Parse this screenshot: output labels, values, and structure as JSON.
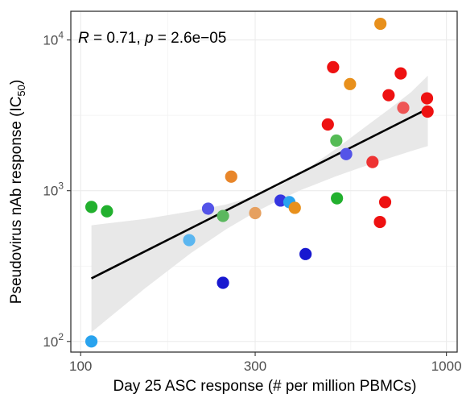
{
  "chart_data": {
    "type": "scatter",
    "x_scale": "log",
    "y_scale": "log",
    "xlim": [
      94,
      1070
    ],
    "ylim": [
      85,
      15500
    ],
    "xlabel": "Day 25 ASC response (# per million PBMCs)",
    "ylabel": "Pseudovirus nAb response (IC",
    "ylabel_sub": "50",
    "ylabel_tail": ")",
    "x_ticks": [
      {
        "value": 100,
        "label": "100"
      },
      {
        "value": 300,
        "label": "300"
      },
      {
        "value": 1000,
        "label": "1000"
      }
    ],
    "y_ticks": [
      {
        "value": 100,
        "base": "10",
        "exp": "2"
      },
      {
        "value": 1000,
        "base": "10",
        "exp": "3"
      },
      {
        "value": 10000,
        "base": "10",
        "exp": "4"
      }
    ],
    "grid": true,
    "annotation": {
      "r_label": "R",
      "r_value": " = 0.71, ",
      "p_label": "p",
      "p_value": " = 2.6e−05"
    },
    "regression": {
      "x": [
        107,
        890
      ],
      "y": [
        262,
        3500
      ]
    },
    "confidence_band": [
      {
        "x": 107,
        "lo": 115,
        "hi": 590
      },
      {
        "x": 150,
        "lo": 225,
        "hi": 650
      },
      {
        "x": 200,
        "lo": 385,
        "hi": 730
      },
      {
        "x": 250,
        "lo": 555,
        "hi": 810
      },
      {
        "x": 300,
        "lo": 720,
        "hi": 920
      },
      {
        "x": 350,
        "lo": 870,
        "hi": 1080
      },
      {
        "x": 400,
        "lo": 1010,
        "hi": 1310
      },
      {
        "x": 500,
        "lo": 1250,
        "hi": 1900
      },
      {
        "x": 600,
        "lo": 1460,
        "hi": 2650
      },
      {
        "x": 700,
        "lo": 1650,
        "hi": 3500
      },
      {
        "x": 800,
        "lo": 1830,
        "hi": 4500
      },
      {
        "x": 890,
        "lo": 1980,
        "hi": 5800
      }
    ],
    "band_color": "#e5e5e5",
    "line_color": "#000000",
    "points": [
      {
        "x": 107,
        "y": 780,
        "color": "#22b02e"
      },
      {
        "x": 118,
        "y": 730,
        "color": "#22b02e"
      },
      {
        "x": 107,
        "y": 100,
        "color": "#29a3ee"
      },
      {
        "x": 198,
        "y": 470,
        "color": "#5bb6f0"
      },
      {
        "x": 223,
        "y": 760,
        "color": "#5454e8"
      },
      {
        "x": 245,
        "y": 680,
        "color": "#5bb85f"
      },
      {
        "x": 258,
        "y": 1240,
        "color": "#e8862a"
      },
      {
        "x": 300,
        "y": 710,
        "color": "#e6a060"
      },
      {
        "x": 245,
        "y": 245,
        "color": "#1818d0"
      },
      {
        "x": 352,
        "y": 860,
        "color": "#3535e0"
      },
      {
        "x": 372,
        "y": 840,
        "color": "#29a3ee"
      },
      {
        "x": 385,
        "y": 770,
        "color": "#e8901c"
      },
      {
        "x": 412,
        "y": 380,
        "color": "#1818d0"
      },
      {
        "x": 474,
        "y": 2750,
        "color": "#ee1111"
      },
      {
        "x": 490,
        "y": 6600,
        "color": "#ee1111"
      },
      {
        "x": 500,
        "y": 2150,
        "color": "#55bb55"
      },
      {
        "x": 502,
        "y": 890,
        "color": "#22b02e"
      },
      {
        "x": 532,
        "y": 1750,
        "color": "#5454e8"
      },
      {
        "x": 545,
        "y": 5100,
        "color": "#e8901c"
      },
      {
        "x": 628,
        "y": 1550,
        "color": "#ee3333"
      },
      {
        "x": 660,
        "y": 12800,
        "color": "#e8901c"
      },
      {
        "x": 658,
        "y": 620,
        "color": "#ee1111"
      },
      {
        "x": 680,
        "y": 840,
        "color": "#ee1111"
      },
      {
        "x": 695,
        "y": 4300,
        "color": "#ee1111"
      },
      {
        "x": 750,
        "y": 6000,
        "color": "#ee1111"
      },
      {
        "x": 762,
        "y": 3550,
        "color": "#ee5555"
      },
      {
        "x": 885,
        "y": 4100,
        "color": "#ee1111"
      },
      {
        "x": 888,
        "y": 3350,
        "color": "#ee1111"
      }
    ]
  }
}
